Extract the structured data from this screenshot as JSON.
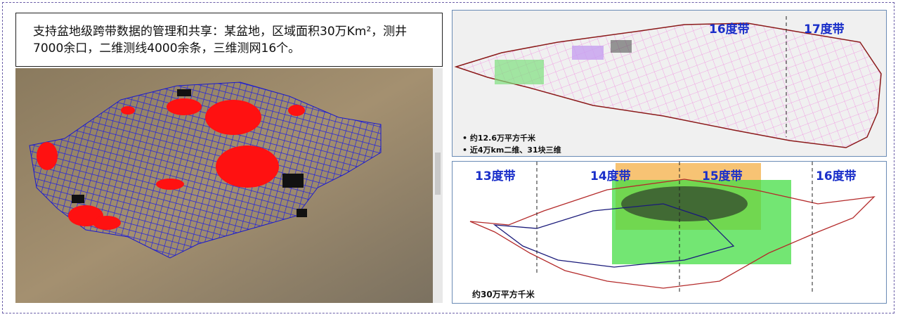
{
  "caption": "支持盆地级跨带数据的管理和共享：某盆地，区域面积30万Km²，测井7000余口，二维测线4000余条，三维测网16个。",
  "top_map": {
    "zones": [
      "16度带",
      "17度带"
    ],
    "notes": [
      "约12.6万平方千米",
      "近4万km二维、31块三维"
    ]
  },
  "bottom_map": {
    "zones": [
      "13度带",
      "14度带",
      "15度带",
      "16度带"
    ],
    "area": "约30万平方千米"
  }
}
